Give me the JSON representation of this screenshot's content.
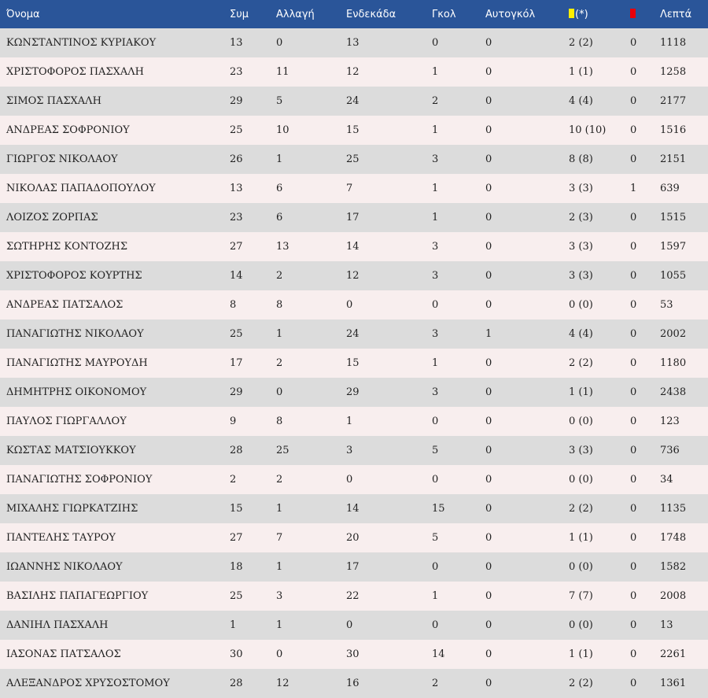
{
  "colors": {
    "header": "#2a5599",
    "row_odd": "#dcdcdc",
    "row_even": "#f8eeee",
    "yellow_card": "#ffef00",
    "red_card": "#e8000b"
  },
  "header": {
    "name": "Όνομα",
    "apps": "Συμ",
    "subs": "Αλλαγή",
    "lineups": "Ενδεκάδα",
    "goals": "Γκολ",
    "own_goals": "Αυτογκόλ",
    "yellow_icon": "yellow-card-icon",
    "yellow_suffix": "(*)",
    "red_icon": "red-card-icon",
    "minutes": "Λεπτά"
  },
  "rows": [
    {
      "name": "ΚΩΝΣΤΑΝΤΙΝΟΣ ΚΥΡΙΑΚΟΥ",
      "apps": "13",
      "subs": "0",
      "lineups": "13",
      "goals": "0",
      "own_goals": "0",
      "yellow": "2 (2)",
      "red": "0",
      "minutes": "1118"
    },
    {
      "name": "ΧΡΙΣΤΟΦΟΡΟΣ ΠΑΣΧΑΛΗ",
      "apps": "23",
      "subs": "11",
      "lineups": "12",
      "goals": "1",
      "own_goals": "0",
      "yellow": "1 (1)",
      "red": "0",
      "minutes": "1258"
    },
    {
      "name": "ΣΙΜΟΣ ΠΑΣΧΑΛΗ",
      "apps": "29",
      "subs": "5",
      "lineups": "24",
      "goals": "2",
      "own_goals": "0",
      "yellow": "4 (4)",
      "red": "0",
      "minutes": "2177"
    },
    {
      "name": "ΑΝΔΡΕΑΣ ΣΟΦΡΟΝΙΟΥ",
      "apps": "25",
      "subs": "10",
      "lineups": "15",
      "goals": "1",
      "own_goals": "0",
      "yellow": "10 (10)",
      "red": "0",
      "minutes": "1516"
    },
    {
      "name": "ΓΙΩΡΓΟΣ ΝΙΚΟΛΑΟΥ",
      "apps": "26",
      "subs": "1",
      "lineups": "25",
      "goals": "3",
      "own_goals": "0",
      "yellow": "8 (8)",
      "red": "0",
      "minutes": "2151"
    },
    {
      "name": "ΝΙΚΟΛΑΣ ΠΑΠΑΔΟΠΟΥΛΟΥ",
      "apps": "13",
      "subs": "6",
      "lineups": "7",
      "goals": "1",
      "own_goals": "0",
      "yellow": "3 (3)",
      "red": "1",
      "minutes": "639"
    },
    {
      "name": "ΛΟΙΖΟΣ ΖΟΡΠΑΣ",
      "apps": "23",
      "subs": "6",
      "lineups": "17",
      "goals": "1",
      "own_goals": "0",
      "yellow": "2 (3)",
      "red": "0",
      "minutes": "1515"
    },
    {
      "name": "ΣΩΤΗΡΗΣ ΚΟΝΤΟΖΗΣ",
      "apps": "27",
      "subs": "13",
      "lineups": "14",
      "goals": "3",
      "own_goals": "0",
      "yellow": "3 (3)",
      "red": "0",
      "minutes": "1597"
    },
    {
      "name": "ΧΡΙΣΤΟΦΟΡΟΣ ΚΟΥΡΤΗΣ",
      "apps": "14",
      "subs": "2",
      "lineups": "12",
      "goals": "3",
      "own_goals": "0",
      "yellow": "3 (3)",
      "red": "0",
      "minutes": "1055"
    },
    {
      "name": "ΑΝΔΡΕΑΣ ΠΑΤΣΑΛΟΣ",
      "apps": "8",
      "subs": "8",
      "lineups": "0",
      "goals": "0",
      "own_goals": "0",
      "yellow": "0 (0)",
      "red": "0",
      "minutes": "53"
    },
    {
      "name": "ΠΑΝΑΓΙΩΤΗΣ ΝΙΚΟΛΑΟΥ",
      "apps": "25",
      "subs": "1",
      "lineups": "24",
      "goals": "3",
      "own_goals": "1",
      "yellow": "4 (4)",
      "red": "0",
      "minutes": "2002"
    },
    {
      "name": "ΠΑΝΑΓΙΩΤΗΣ ΜΑΥΡΟΥΔΗ",
      "apps": "17",
      "subs": "2",
      "lineups": "15",
      "goals": "1",
      "own_goals": "0",
      "yellow": "2 (2)",
      "red": "0",
      "minutes": "1180"
    },
    {
      "name": "ΔΗΜΗΤΡΗΣ ΟΙΚΟΝΟΜΟΥ",
      "apps": "29",
      "subs": "0",
      "lineups": "29",
      "goals": "3",
      "own_goals": "0",
      "yellow": "1 (1)",
      "red": "0",
      "minutes": "2438"
    },
    {
      "name": "ΠΑΥΛΟΣ ΓΙΩΡΓΑΛΛΟΥ",
      "apps": "9",
      "subs": "8",
      "lineups": "1",
      "goals": "0",
      "own_goals": "0",
      "yellow": "0 (0)",
      "red": "0",
      "minutes": "123"
    },
    {
      "name": "ΚΩΣΤΑΣ ΜΑΤΣΙΟΥΚΚΟΥ",
      "apps": "28",
      "subs": "25",
      "lineups": "3",
      "goals": "5",
      "own_goals": "0",
      "yellow": "3 (3)",
      "red": "0",
      "minutes": "736"
    },
    {
      "name": "ΠΑΝΑΓΙΩΤΗΣ ΣΟΦΡΟΝΙΟΥ",
      "apps": "2",
      "subs": "2",
      "lineups": "0",
      "goals": "0",
      "own_goals": "0",
      "yellow": "0 (0)",
      "red": "0",
      "minutes": "34"
    },
    {
      "name": "ΜΙΧΑΛΗΣ ΓΙΩΡΚΑΤΖΙΗΣ",
      "apps": "15",
      "subs": "1",
      "lineups": "14",
      "goals": "15",
      "own_goals": "0",
      "yellow": "2 (2)",
      "red": "0",
      "minutes": "1135"
    },
    {
      "name": "ΠΑΝΤΕΛΗΣ ΤΑΥΡΟΥ",
      "apps": "27",
      "subs": "7",
      "lineups": "20",
      "goals": "5",
      "own_goals": "0",
      "yellow": "1 (1)",
      "red": "0",
      "minutes": "1748"
    },
    {
      "name": "ΙΩΑΝΝΗΣ ΝΙΚΟΛΑΟΥ",
      "apps": "18",
      "subs": "1",
      "lineups": "17",
      "goals": "0",
      "own_goals": "0",
      "yellow": "0 (0)",
      "red": "0",
      "minutes": "1582"
    },
    {
      "name": "ΒΑΣΙΛΗΣ ΠΑΠΑΓΕΩΡΓΙΟΥ",
      "apps": "25",
      "subs": "3",
      "lineups": "22",
      "goals": "1",
      "own_goals": "0",
      "yellow": "7 (7)",
      "red": "0",
      "minutes": "2008"
    },
    {
      "name": "ΔΑΝΙΗΛ ΠΑΣΧΑΛΗ",
      "apps": "1",
      "subs": "1",
      "lineups": "0",
      "goals": "0",
      "own_goals": "0",
      "yellow": "0 (0)",
      "red": "0",
      "minutes": "13"
    },
    {
      "name": "ΙΑΣΟΝΑΣ ΠΑΤΣΑΛΟΣ",
      "apps": "30",
      "subs": "0",
      "lineups": "30",
      "goals": "14",
      "own_goals": "0",
      "yellow": "1 (1)",
      "red": "0",
      "minutes": "2261"
    },
    {
      "name": "ΑΛΕΞΑΝΔΡΟΣ ΧΡΥΣΟΣΤΟΜΟΥ",
      "apps": "28",
      "subs": "12",
      "lineups": "16",
      "goals": "2",
      "own_goals": "0",
      "yellow": "2 (2)",
      "red": "0",
      "minutes": "1361"
    }
  ]
}
